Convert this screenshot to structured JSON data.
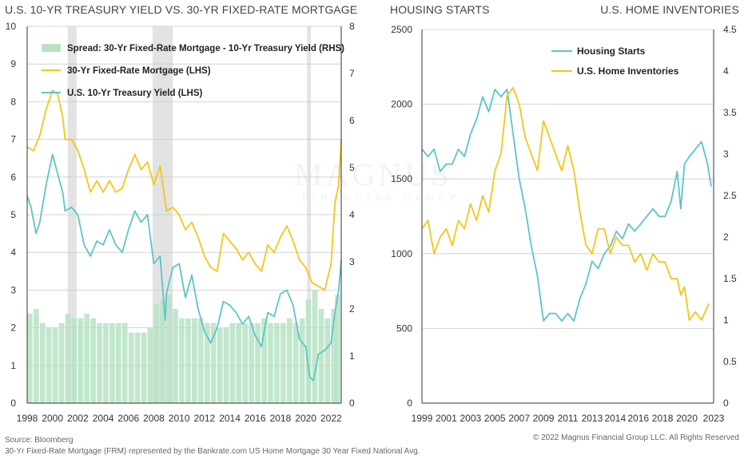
{
  "titles": {
    "left": "U.S. 10-YR TREASURY YIELD VS. 30-YR FIXED-RATE MORTGAGE",
    "right_a": "HOUSING STARTS",
    "right_b": "U.S. HOME INVENTORIES"
  },
  "footer": {
    "source": "Source: Bloomberg",
    "note": "30-Yr Fixed-Rate Mortgage (FRM) represented by the Bankrate.com US Home Mortgage 30 Year Fixed National Avg.",
    "copyright": "© 2022 Magnus Financial Group LLC. All Rights Reserved"
  },
  "watermark": {
    "line1": "MAGNUS",
    "line2": "FINANCIAL GROUP"
  },
  "colors": {
    "mortgage": "#f5c518",
    "treasury": "#5cc5c8",
    "spread": "#b6e3c4",
    "recession": "#e3e3e3",
    "grid": "#c9c9c9",
    "axis": "#333333"
  },
  "chart_data": [
    {
      "type": "line",
      "title": "U.S. 10-YR TREASURY YIELD VS. 30-YR FIXED-RATE MORTGAGE",
      "xlim": [
        1998,
        2022.8
      ],
      "ylim": [
        0,
        10
      ],
      "y2lim": [
        0,
        8
      ],
      "x_ticks": [
        "1998",
        "2000",
        "2002",
        "2004",
        "2006",
        "2008",
        "2010",
        "2012",
        "2014",
        "2016",
        "2018",
        "2020",
        "2022"
      ],
      "y_ticks": [
        "0",
        "1",
        "2",
        "3",
        "4",
        "5",
        "6",
        "7",
        "8",
        "9",
        "10"
      ],
      "y2_ticks": [
        "0",
        "1",
        "2",
        "3",
        "4",
        "5",
        "6",
        "7",
        "8"
      ],
      "legend_position": "top-left",
      "recessions": [
        [
          2001.2,
          2001.9
        ],
        [
          2007.9,
          2009.5
        ],
        [
          2020.1,
          2020.4
        ]
      ],
      "series": [
        {
          "name": "Spread: 30-Yr Fixed-Rate Mortgage - 10-Yr Treasury Yield (RHS)",
          "kind": "bar",
          "axis": "right",
          "x": [
            1998.0,
            1998.5,
            1999.0,
            1999.5,
            2000.0,
            2000.5,
            2001.0,
            2001.5,
            2002.0,
            2002.5,
            2003.0,
            2003.5,
            2004.0,
            2004.5,
            2005.0,
            2005.5,
            2006.0,
            2006.5,
            2007.0,
            2007.5,
            2008.0,
            2008.5,
            2009.0,
            2009.5,
            2010.0,
            2010.5,
            2011.0,
            2011.5,
            2012.0,
            2012.5,
            2013.0,
            2013.5,
            2014.0,
            2014.5,
            2015.0,
            2015.5,
            2016.0,
            2016.5,
            2017.0,
            2017.5,
            2018.0,
            2018.5,
            2019.0,
            2019.5,
            2020.0,
            2020.5,
            2021.0,
            2021.5,
            2022.0,
            2022.3
          ],
          "values": [
            1.9,
            2.0,
            1.7,
            1.6,
            1.6,
            1.7,
            1.9,
            1.8,
            1.8,
            1.9,
            1.8,
            1.7,
            1.7,
            1.7,
            1.7,
            1.7,
            1.5,
            1.5,
            1.5,
            1.6,
            2.1,
            2.2,
            2.3,
            2.0,
            1.8,
            1.8,
            1.8,
            1.8,
            1.7,
            1.7,
            1.6,
            1.6,
            1.7,
            1.7,
            1.7,
            1.7,
            1.7,
            1.8,
            1.7,
            1.7,
            1.7,
            1.8,
            1.7,
            1.8,
            2.2,
            2.4,
            2.0,
            1.8,
            2.0,
            2.3
          ]
        },
        {
          "name": "30-Yr Fixed-Rate Mortgage (LHS)",
          "kind": "line",
          "axis": "left",
          "x": [
            1998.0,
            1998.5,
            1999.0,
            1999.5,
            2000.0,
            2000.4,
            2000.8,
            2001.0,
            2001.5,
            2002.0,
            2002.5,
            2003.0,
            2003.5,
            2004.0,
            2004.5,
            2005.0,
            2005.5,
            2006.0,
            2006.5,
            2007.0,
            2007.5,
            2008.0,
            2008.5,
            2009.0,
            2009.5,
            2010.0,
            2010.5,
            2011.0,
            2011.5,
            2012.0,
            2012.5,
            2013.0,
            2013.5,
            2014.0,
            2014.5,
            2015.0,
            2015.5,
            2016.0,
            2016.5,
            2017.0,
            2017.5,
            2018.0,
            2018.5,
            2019.0,
            2019.5,
            2020.0,
            2020.5,
            2021.0,
            2021.5,
            2022.0,
            2022.3,
            2022.6,
            2022.8
          ],
          "values": [
            6.8,
            6.7,
            7.1,
            7.8,
            8.3,
            8.2,
            7.6,
            7.0,
            7.0,
            6.7,
            6.2,
            5.6,
            5.9,
            5.6,
            5.9,
            5.6,
            5.7,
            6.2,
            6.6,
            6.2,
            6.4,
            5.8,
            6.3,
            5.1,
            5.2,
            5.0,
            4.6,
            4.8,
            4.4,
            3.9,
            3.6,
            3.5,
            4.5,
            4.3,
            4.1,
            3.8,
            4.0,
            3.7,
            3.5,
            4.2,
            4.0,
            4.4,
            4.7,
            4.3,
            3.8,
            3.6,
            3.2,
            3.1,
            3.0,
            3.7,
            5.3,
            5.8,
            7.0
          ]
        },
        {
          "name": "U.S. 10-Yr Treasury Yield (LHS)",
          "kind": "line",
          "axis": "left",
          "x": [
            1998.0,
            1998.3,
            1998.7,
            1999.0,
            1999.5,
            2000.0,
            2000.4,
            2000.8,
            2001.0,
            2001.5,
            2002.0,
            2002.5,
            2003.0,
            2003.5,
            2004.0,
            2004.5,
            2005.0,
            2005.5,
            2006.0,
            2006.5,
            2007.0,
            2007.5,
            2008.0,
            2008.5,
            2008.9,
            2009.0,
            2009.5,
            2010.0,
            2010.5,
            2011.0,
            2011.5,
            2012.0,
            2012.5,
            2013.0,
            2013.5,
            2014.0,
            2014.5,
            2015.0,
            2015.5,
            2016.0,
            2016.5,
            2017.0,
            2017.5,
            2018.0,
            2018.5,
            2019.0,
            2019.5,
            2020.0,
            2020.3,
            2020.6,
            2021.0,
            2021.5,
            2022.0,
            2022.3,
            2022.6,
            2022.8
          ],
          "values": [
            5.5,
            5.2,
            4.5,
            4.8,
            5.8,
            6.6,
            6.1,
            5.6,
            5.1,
            5.2,
            5.0,
            4.2,
            3.9,
            4.3,
            4.2,
            4.6,
            4.2,
            4.0,
            4.6,
            5.1,
            4.8,
            5.0,
            3.7,
            3.9,
            2.2,
            2.9,
            3.6,
            3.7,
            2.8,
            3.4,
            2.5,
            1.9,
            1.6,
            2.0,
            2.7,
            2.6,
            2.4,
            2.1,
            2.3,
            1.8,
            1.5,
            2.4,
            2.3,
            2.9,
            3.0,
            2.6,
            1.7,
            1.5,
            0.7,
            0.6,
            1.3,
            1.4,
            1.6,
            2.4,
            3.0,
            3.8
          ]
        }
      ]
    },
    {
      "type": "line",
      "title": "HOUSING STARTS / U.S. HOME INVENTORIES",
      "xlim": [
        1999,
        2023
      ],
      "ylim": [
        0,
        2500
      ],
      "y2lim": [
        0,
        4.5
      ],
      "x_ticks": [
        "1999",
        "2001",
        "2003",
        "2005",
        "2007",
        "2009",
        "2011",
        "2013",
        "2014",
        "2016",
        "2018",
        "2020",
        "2023"
      ],
      "y_ticks": [
        "0",
        "500",
        "1000",
        "1500",
        "2000",
        "2500"
      ],
      "y2_ticks": [
        "0",
        "0.5",
        "1",
        "1.5",
        "2",
        "2.5",
        "3",
        "3.5",
        "4",
        "4.5"
      ],
      "legend_position": "top-center",
      "series": [
        {
          "name": "Housing Starts",
          "axis": "left",
          "x": [
            1999.0,
            1999.5,
            2000.0,
            2000.5,
            2001.0,
            2001.5,
            2002.0,
            2002.5,
            2003.0,
            2003.5,
            2004.0,
            2004.5,
            2005.0,
            2005.5,
            2006.0,
            2006.5,
            2007.0,
            2007.5,
            2008.0,
            2008.5,
            2009.0,
            2009.5,
            2010.0,
            2010.5,
            2011.0,
            2011.5,
            2012.0,
            2012.5,
            2013.0,
            2013.5,
            2014.0,
            2014.5,
            2015.0,
            2015.5,
            2016.0,
            2016.5,
            2017.0,
            2017.5,
            2018.0,
            2018.5,
            2019.0,
            2019.5,
            2020.0,
            2020.3,
            2020.6,
            2021.0,
            2021.5,
            2022.0,
            2022.5,
            2022.8
          ],
          "values": [
            1700,
            1650,
            1700,
            1550,
            1600,
            1600,
            1700,
            1650,
            1800,
            1900,
            2050,
            1950,
            2100,
            2050,
            2100,
            1800,
            1500,
            1300,
            1050,
            850,
            550,
            600,
            600,
            550,
            600,
            550,
            700,
            800,
            950,
            900,
            1000,
            1050,
            1150,
            1100,
            1200,
            1150,
            1200,
            1250,
            1300,
            1250,
            1250,
            1350,
            1550,
            1300,
            1600,
            1650,
            1700,
            1750,
            1600,
            1450
          ]
        },
        {
          "name": "U.S. Home Inventories",
          "axis": "right",
          "x": [
            1999.0,
            1999.5,
            2000.0,
            2000.5,
            2001.0,
            2001.5,
            2002.0,
            2002.5,
            2003.0,
            2003.5,
            2004.0,
            2004.5,
            2005.0,
            2005.5,
            2006.0,
            2006.5,
            2007.0,
            2007.5,
            2008.0,
            2008.5,
            2009.0,
            2009.5,
            2010.0,
            2010.5,
            2011.0,
            2011.5,
            2012.0,
            2012.5,
            2013.0,
            2013.5,
            2014.0,
            2014.5,
            2015.0,
            2015.5,
            2016.0,
            2016.5,
            2017.0,
            2017.5,
            2018.0,
            2018.5,
            2019.0,
            2019.5,
            2020.0,
            2020.3,
            2020.6,
            2021.0,
            2021.5,
            2022.0,
            2022.3,
            2022.6
          ],
          "values": [
            2.1,
            2.2,
            1.8,
            2.0,
            2.1,
            1.9,
            2.2,
            2.1,
            2.4,
            2.2,
            2.5,
            2.3,
            2.8,
            3.0,
            3.7,
            3.8,
            3.6,
            3.2,
            3.0,
            2.8,
            3.4,
            3.2,
            3.0,
            2.8,
            3.1,
            2.8,
            2.3,
            1.9,
            1.8,
            2.1,
            2.1,
            1.8,
            2.0,
            1.9,
            1.9,
            1.7,
            1.8,
            1.6,
            1.8,
            1.7,
            1.7,
            1.5,
            1.5,
            1.3,
            1.4,
            1.0,
            1.1,
            1.0,
            1.1,
            1.2
          ]
        }
      ]
    }
  ]
}
